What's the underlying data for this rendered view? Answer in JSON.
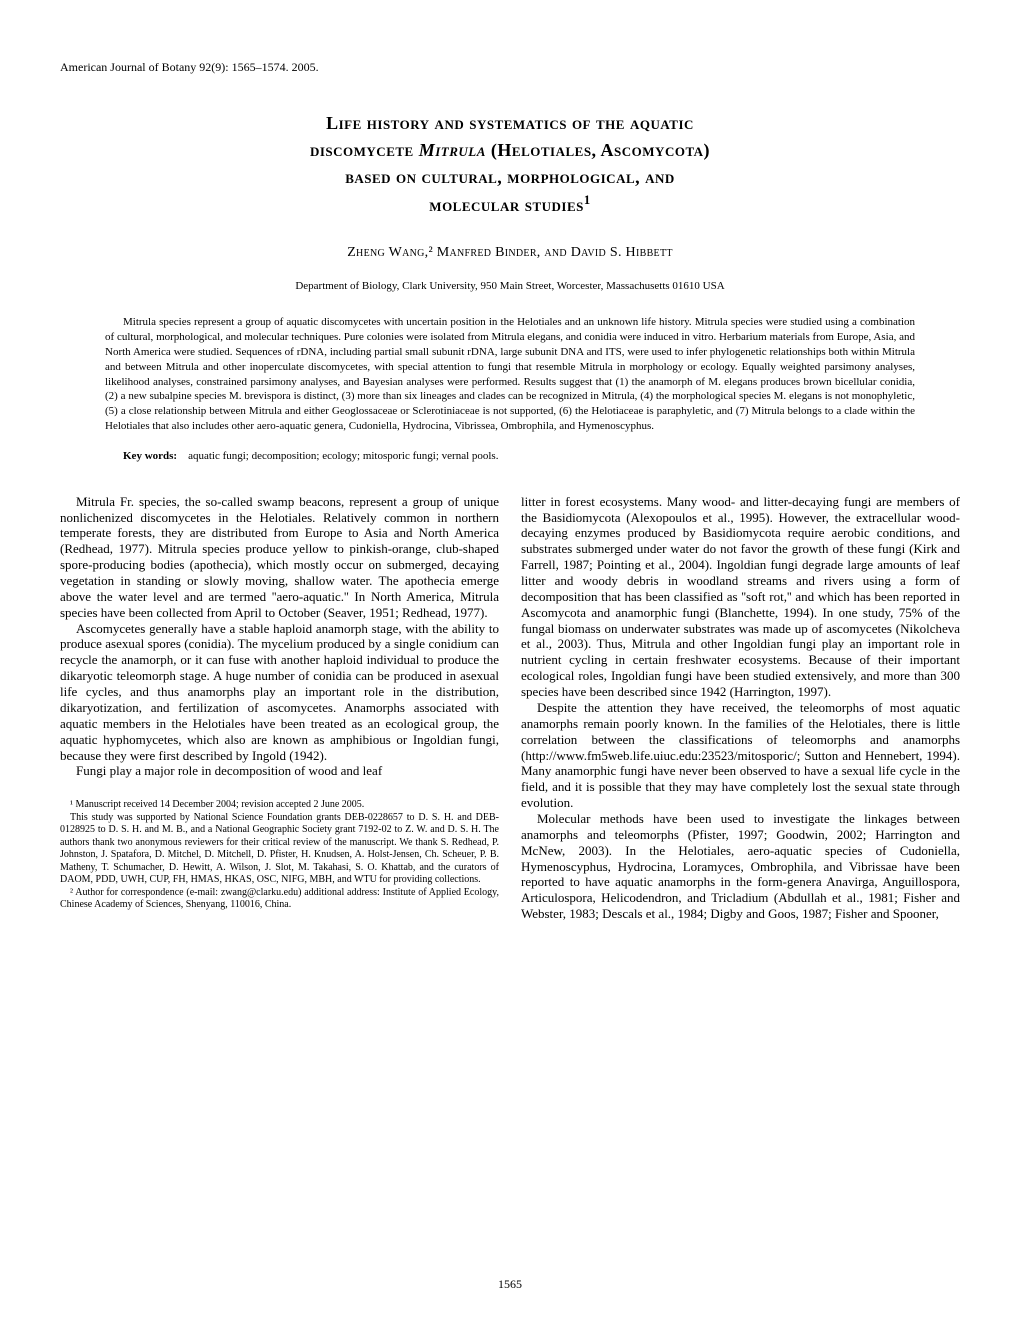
{
  "header": {
    "journal": "American Journal of Botany 92(9): 1565–1574. 2005."
  },
  "title": {
    "line1": "Life history and systematics of the aquatic",
    "line2_pre": "discomycete ",
    "line2_italic": "Mitrula",
    "line2_post": " (Helotiales, Ascomycota)",
    "line3": "based on cultural, morphological, and",
    "line4": "molecular studies",
    "superscript": "1"
  },
  "authors": "Zheng Wang,² Manfred Binder, and David S. Hibbett",
  "affiliation": "Department of Biology, Clark University, 950 Main Street, Worcester, Massachusetts 01610 USA",
  "abstract": "Mitrula species represent a group of aquatic discomycetes with uncertain position in the Helotiales and an unknown life history. Mitrula species were studied using a combination of cultural, morphological, and molecular techniques. Pure colonies were isolated from Mitrula elegans, and conidia were induced in vitro. Herbarium materials from Europe, Asia, and North America were studied. Sequences of rDNA, including partial small subunit rDNA, large subunit DNA and ITS, were used to infer phylogenetic relationships both within Mitrula and between Mitrula and other inoperculate discomycetes, with special attention to fungi that resemble Mitrula in morphology or ecology. Equally weighted parsimony analyses, likelihood analyses, constrained parsimony analyses, and Bayesian analyses were performed. Results suggest that (1) the anamorph of M. elegans produces brown bicellular conidia, (2) a new subalpine species M. brevispora is distinct, (3) more than six lineages and clades can be recognized in Mitrula, (4) the morphological species M. elegans is not monophyletic, (5) a close relationship between Mitrula and either Geoglossaceae or Sclerotiniaceae is not supported, (6) the Helotiaceae is paraphyletic, and (7) Mitrula belongs to a clade within the Helotiales that also includes other aero-aquatic genera, Cudoniella, Hydrocina, Vibrissea, Ombrophila, and Hymenoscyphus.",
  "keywords": {
    "label": "Key words:",
    "text": "aquatic fungi; decomposition; ecology; mitosporic fungi; vernal pools."
  },
  "body": {
    "left": {
      "p1": "Mitrula Fr. species, the so-called swamp beacons, represent a group of unique nonlichenized discomycetes in the Helotiales. Relatively common in northern temperate forests, they are distributed from Europe to Asia and North America (Redhead, 1977). Mitrula species produce yellow to pinkish-orange, club-shaped spore-producing bodies (apothecia), which mostly occur on submerged, decaying vegetation in standing or slowly moving, shallow water. The apothecia emerge above the water level and are termed ''aero-aquatic.'' In North America, Mitrula species have been collected from April to October (Seaver, 1951; Redhead, 1977).",
      "p2": "Ascomycetes generally have a stable haploid anamorph stage, with the ability to produce asexual spores (conidia). The mycelium produced by a single conidium can recycle the anamorph, or it can fuse with another haploid individual to produce the dikaryotic teleomorph stage. A huge number of conidia can be produced in asexual life cycles, and thus anamorphs play an important role in the distribution, dikaryotization, and fertilization of ascomycetes. Anamorphs associated with aquatic members in the Helotiales have been treated as an ecological group, the aquatic hyphomycetes, which also are known as amphibious or Ingoldian fungi, because they were first described by Ingold (1942).",
      "p3": "Fungi play a major role in decomposition of wood and leaf"
    },
    "right": {
      "p1": "litter in forest ecosystems. Many wood- and litter-decaying fungi are members of the Basidiomycota (Alexopoulos et al., 1995). However, the extracellular wood-decaying enzymes produced by Basidiomycota require aerobic conditions, and substrates submerged under water do not favor the growth of these fungi (Kirk and Farrell, 1987; Pointing et al., 2004). Ingoldian fungi degrade large amounts of leaf litter and woody debris in woodland streams and rivers using a form of decomposition that has been classified as ''soft rot,'' and which has been reported in Ascomycota and anamorphic fungi (Blanchette, 1994). In one study, 75% of the fungal biomass on underwater substrates was made up of ascomycetes (Nikolcheva et al., 2003). Thus, Mitrula and other Ingoldian fungi play an important role in nutrient cycling in certain freshwater ecosystems. Because of their important ecological roles, Ingoldian fungi have been studied extensively, and more than 300 species have been described since 1942 (Harrington, 1997).",
      "p2": "Despite the attention they have received, the teleomorphs of most aquatic anamorphs remain poorly known. In the families of the Helotiales, there is little correlation between the classifications of teleomorphs and anamorphs (http://www.fm5web.life.uiuc.edu:23523/mitosporic/; Sutton and Hennebert, 1994). Many anamorphic fungi have never been observed to have a sexual life cycle in the field, and it is possible that they may have completely lost the sexual state through evolution.",
      "p3": "Molecular methods have been used to investigate the linkages between anamorphs and teleomorphs (Pfister, 1997; Goodwin, 2002; Harrington and McNew, 2003). In the Helotiales, aero-aquatic species of Cudoniella, Hymenoscyphus, Hydrocina, Loramyces, Ombrophila, and Vibrissae have been reported to have aquatic anamorphs in the form-genera Anavirga, Anguillospora, Articulospora, Helicodendron, and Tricladium (Abdullah et al., 1981; Fisher and Webster, 1983; Descals et al., 1984; Digby and Goos, 1987; Fisher and Spooner,"
    }
  },
  "footnotes": {
    "f1": "¹ Manuscript received 14 December 2004; revision accepted 2 June 2005.",
    "f2": "This study was supported by National Science Foundation grants DEB-0228657 to D. S. H. and DEB-0128925 to D. S. H. and M. B., and a National Geographic Society grant 7192-02 to Z. W. and D. S. H. The authors thank two anonymous reviewers for their critical review of the manuscript. We thank S. Redhead, P. Johnston, J. Spatafora, D. Mitchel, D. Mitchell, D. Pfister, H. Knudsen, A. Holst-Jensen, Ch. Scheuer, P. B. Matheny, T. Schumacher, D. Hewitt, A. Wilson, J. Slot, M. Takahasi, S. O. Khattab, and the curators of DAOM, PDD, UWH, CUP, FH, HMAS, HKAS, OSC, NIFG, MBH, and WTU for providing collections.",
    "f3": "² Author for correspondence (e-mail: zwang@clarku.edu) additional address: Institute of Applied Ecology, Chinese Academy of Sciences, Shenyang, 110016, China."
  },
  "page_number": "1565"
}
